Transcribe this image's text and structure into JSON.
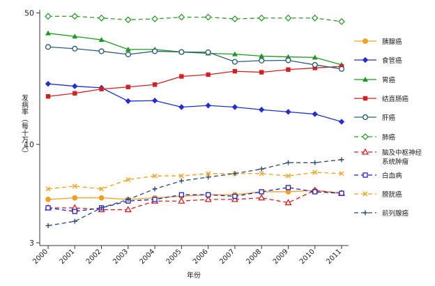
{
  "chart_data": {
    "type": "line",
    "title": "",
    "xlabel": "年份",
    "ylabel": "发病率（每十万人）",
    "yscale": "log",
    "ylim": [
      2.9,
      52
    ],
    "yticks": [
      50,
      10,
      3
    ],
    "ytick_labels": [
      "50",
      "10",
      "3"
    ],
    "x": [
      "2000",
      "2001",
      "2002",
      "2003",
      "2004",
      "2005",
      "2006",
      "2007",
      "2008",
      "2009",
      "2010",
      "2011"
    ],
    "grid": false,
    "legend_position": "right",
    "series": [
      {
        "name": "胰腺癌",
        "color": "#f0a020",
        "marker": "circle",
        "dash": "solid",
        "values": [
          5.1,
          5.2,
          5.2,
          5.1,
          5.2,
          5.3,
          5.4,
          5.4,
          5.6,
          5.6,
          5.7,
          5.5
        ]
      },
      {
        "name": "食管癌",
        "color": "#1f2fd0",
        "marker": "diamond",
        "dash": "solid",
        "values": [
          21.0,
          20.4,
          20.0,
          17.0,
          17.1,
          15.8,
          16.1,
          15.8,
          15.3,
          14.9,
          14.5,
          13.2
        ]
      },
      {
        "name": "胃癌",
        "color": "#1f9a1f",
        "marker": "triangle",
        "dash": "solid",
        "values": [
          39.0,
          37.5,
          36.0,
          32.0,
          32.0,
          31.0,
          30.5,
          30.2,
          29.5,
          29.2,
          29.0,
          26.5
        ]
      },
      {
        "name": "结直肠癌",
        "color": "#d42020",
        "marker": "square",
        "dash": "solid",
        "values": [
          18.0,
          18.7,
          19.7,
          20.2,
          20.8,
          23.0,
          23.5,
          24.5,
          24.2,
          25.0,
          25.5,
          26.0
        ]
      },
      {
        "name": "肝癌",
        "color": "#2c5e7a",
        "marker": "hcircle",
        "dash": "solid",
        "values": [
          33.0,
          32.3,
          31.3,
          30.1,
          31.3,
          31.0,
          30.9,
          27.5,
          27.9,
          28.0,
          26.5,
          25.2
        ]
      },
      {
        "name": "肺癌",
        "color": "#2e9a2e",
        "marker": "hdiamond",
        "dash": "dashed",
        "values": [
          48.0,
          48.0,
          47.0,
          46.0,
          46.5,
          47.5,
          47.5,
          46.5,
          47.0,
          47.0,
          47.0,
          45.0
        ]
      },
      {
        "name": "脑及中枢神经系统肿瘤",
        "color": "#d42020",
        "marker": "htriangle",
        "dash": "dashed",
        "values": [
          4.6,
          4.6,
          4.5,
          4.5,
          5.0,
          5.0,
          5.1,
          5.1,
          5.2,
          4.9,
          5.7,
          5.5
        ]
      },
      {
        "name": "白血病",
        "color": "#2020c8",
        "marker": "hsquare",
        "dash": "dashed",
        "values": [
          4.6,
          4.4,
          4.6,
          5.0,
          5.1,
          5.4,
          5.4,
          5.3,
          5.6,
          5.9,
          5.6,
          5.5
        ]
      },
      {
        "name": "膀胱癌",
        "color": "#f0a020",
        "marker": "x",
        "dash": "dashed",
        "values": [
          5.8,
          6.0,
          5.8,
          6.5,
          6.8,
          6.8,
          7.0,
          7.0,
          7.0,
          6.8,
          7.1,
          7.0
        ]
      },
      {
        "name": "前列腺癌",
        "color": "#2c4a6e",
        "marker": "plus",
        "dash": "dashed",
        "values": [
          3.7,
          3.9,
          4.6,
          5.1,
          5.8,
          6.4,
          6.7,
          7.0,
          7.4,
          8.0,
          8.0,
          8.3
        ]
      }
    ],
    "legend_labels": [
      [
        "胰腺癌"
      ],
      [
        "食管癌"
      ],
      [
        "胃癌"
      ],
      [
        "结直肠癌"
      ],
      [
        "肝癌"
      ],
      [
        "肺癌"
      ],
      [
        "脑及中枢神经",
        "系统肿瘤"
      ],
      [
        "白血病"
      ],
      [
        "膀胱癌"
      ],
      [
        "前列腺癌"
      ]
    ]
  }
}
